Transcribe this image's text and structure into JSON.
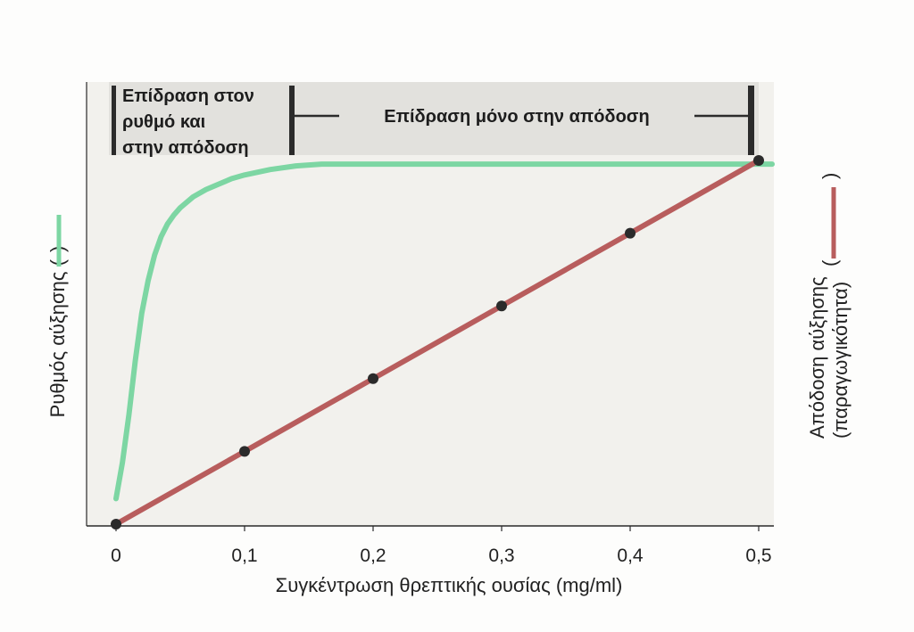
{
  "chart_data": {
    "type": "line",
    "xlabel": "Συγκέντρωση θρεπτικής ουσίας (mg/ml)",
    "ylabel_left": "Ρυθμός αύξησης (",
    "ylabel_left_close": ")",
    "ylabel_right_line1": "Απόδοση αύξησης",
    "ylabel_right_line2": "(παραγωγικότητα)",
    "ylabel_right_open": "(",
    "ylabel_right_close": ")",
    "xlim": [
      0,
      0.5
    ],
    "ylim": [
      0,
      1
    ],
    "x_ticks": [
      {
        "value": 0,
        "label": "0"
      },
      {
        "value": 0.1,
        "label": "0,1"
      },
      {
        "value": 0.2,
        "label": "0,2"
      },
      {
        "value": 0.3,
        "label": "0,3"
      },
      {
        "value": 0.4,
        "label": "0,4"
      },
      {
        "value": 0.5,
        "label": "0,5"
      }
    ],
    "grid": false,
    "series": [
      {
        "color": "#7dd6a3",
        "style": "curve",
        "x": [
          0,
          0.005,
          0.01,
          0.015,
          0.02,
          0.025,
          0.03,
          0.035,
          0.04,
          0.045,
          0.05,
          0.06,
          0.07,
          0.08,
          0.09,
          0.1,
          0.12,
          0.14,
          0.16,
          0.2,
          0.3,
          0.4,
          0.5
        ],
        "y": [
          0.07,
          0.17,
          0.3,
          0.45,
          0.58,
          0.67,
          0.74,
          0.79,
          0.825,
          0.85,
          0.87,
          0.9,
          0.92,
          0.935,
          0.95,
          0.96,
          0.975,
          0.985,
          0.99,
          0.99,
          0.99,
          0.99,
          0.99
        ]
      },
      {
        "color": "#b85d5d",
        "style": "line-markers",
        "x": [
          0,
          0.1,
          0.2,
          0.3,
          0.4,
          0.5
        ],
        "y": [
          0,
          0.2,
          0.4,
          0.6,
          0.8,
          1.0
        ]
      }
    ],
    "annotations": {
      "left_box_lines": [
        "Επίδραση στον",
        "ρυθμό και",
        "στην απόδοση"
      ],
      "right_label": "Επίδραση μόνο στην απόδοση",
      "left_range": [
        0,
        0.13
      ],
      "right_range": [
        0.13,
        0.5
      ]
    }
  }
}
